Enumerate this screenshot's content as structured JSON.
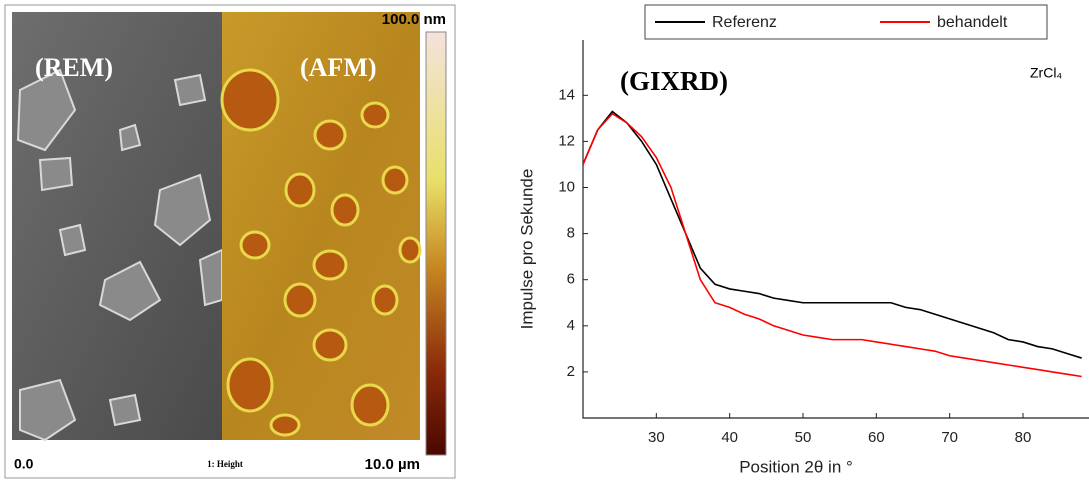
{
  "image_panel": {
    "scale_max": "100.0 nm",
    "left_label": "(REM)",
    "right_label": "(AFM)",
    "scale_min": "0.0",
    "channel": "1: Height",
    "size": "10.0 µm"
  },
  "chart_data": {
    "type": "line",
    "annotations": [
      "(GIXRD)",
      "ZrCl₄"
    ],
    "x_label": "Position 2θ in °",
    "y_label": "Impulse pro Sekunde",
    "x": [
      20,
      22,
      24,
      26,
      28,
      30,
      32,
      34,
      36,
      38,
      40,
      42,
      44,
      46,
      48,
      50,
      52,
      54,
      56,
      58,
      60,
      62,
      64,
      66,
      68,
      70,
      72,
      74,
      76,
      78,
      80,
      82,
      84,
      86,
      88
    ],
    "series": [
      {
        "name": "Referenz",
        "color": "#000000",
        "values": [
          11,
          12.5,
          13.3,
          12.8,
          12,
          11,
          9.5,
          8,
          6.5,
          5.8,
          5.6,
          5.5,
          5.4,
          5.2,
          5.1,
          5,
          5,
          5,
          5,
          5,
          5,
          5,
          4.8,
          4.7,
          4.5,
          4.3,
          4.1,
          3.9,
          3.7,
          3.4,
          3.3,
          3.1,
          3,
          2.8,
          2.6
        ]
      },
      {
        "name": "behandelt",
        "color": "#ff0000",
        "values": [
          11,
          12.5,
          13.2,
          12.8,
          12.2,
          11.3,
          10,
          8,
          6,
          5,
          4.8,
          4.5,
          4.3,
          4,
          3.8,
          3.6,
          3.5,
          3.4,
          3.4,
          3.4,
          3.3,
          3.2,
          3.1,
          3,
          2.9,
          2.7,
          2.6,
          2.5,
          2.4,
          2.3,
          2.2,
          2.1,
          2,
          1.9,
          1.8
        ]
      }
    ],
    "xlim": [
      20,
      89
    ],
    "ylim": [
      0,
      16.4
    ],
    "xticks": [
      30,
      40,
      50,
      60,
      70,
      80
    ],
    "yticks": [
      2,
      4,
      6,
      8,
      10,
      12,
      14
    ],
    "legend": "top"
  }
}
